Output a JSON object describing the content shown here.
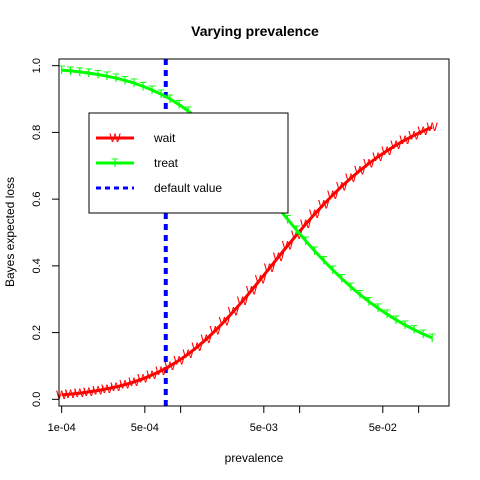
{
  "chart_data": {
    "type": "line",
    "title": "Varying prevalence",
    "xlabel": "prevalence",
    "ylabel": "Bayes expected loss",
    "x_scale": "log",
    "xlim": [
      9.5e-05,
      0.18
    ],
    "ylim": [
      -0.02,
      1.02
    ],
    "x_ticks": [
      {
        "value": 0.0001,
        "label": "1e-04"
      },
      {
        "value": 0.0005,
        "label": "5e-04"
      },
      {
        "value": 0.001,
        "label": ""
      },
      {
        "value": 0.005,
        "label": "5e-03"
      },
      {
        "value": 0.01,
        "label": ""
      },
      {
        "value": 0.05,
        "label": "5e-02"
      },
      {
        "value": 0.1,
        "label": ""
      }
    ],
    "y_ticks": [
      {
        "value": 0.0,
        "label": "0.0"
      },
      {
        "value": 0.2,
        "label": "0.2"
      },
      {
        "value": 0.4,
        "label": "0.4"
      },
      {
        "value": 0.6,
        "label": "0.6"
      },
      {
        "value": 0.8,
        "label": "0.8"
      },
      {
        "value": 1.0,
        "label": "1.0"
      }
    ],
    "grid": false,
    "legend_position": "top-left",
    "series": [
      {
        "name": "wait",
        "color": "#ff0000",
        "marker": "W",
        "x": [
          0.0001,
          0.000119,
          0.000142,
          0.000169,
          0.000202,
          0.00024,
          0.000286,
          0.000341,
          0.000406,
          0.000483,
          0.000575,
          0.000685,
          0.000816,
          0.000972,
          0.001158,
          0.001379,
          0.001643,
          0.001957,
          0.002331,
          0.002776,
          0.003307,
          0.003939,
          0.004691,
          0.005588,
          0.006655,
          0.007927,
          0.009441,
          0.011245,
          0.013393,
          0.015952,
          0.019,
          0.02263,
          0.026953,
          0.032102,
          0.038235,
          0.04554,
          0.054241,
          0.064603,
          0.076945,
          0.091645,
          0.109153,
          0.13
        ],
        "y": [
          0.0133,
          0.0158,
          0.0188,
          0.0223,
          0.0265,
          0.0315,
          0.0373,
          0.0442,
          0.0523,
          0.0618,
          0.0728,
          0.0855,
          0.1002,
          0.1169,
          0.1358,
          0.1569,
          0.1803,
          0.2059,
          0.2335,
          0.2631,
          0.2942,
          0.3266,
          0.3598,
          0.3934,
          0.4271,
          0.4604,
          0.4931,
          0.5248,
          0.5554,
          0.5846,
          0.6123,
          0.6385,
          0.663,
          0.6859,
          0.7071,
          0.7268,
          0.745,
          0.7617,
          0.7771,
          0.7912,
          0.8041,
          0.816
        ]
      },
      {
        "name": "treat",
        "color": "#00ff00",
        "marker": "T",
        "x": [
          0.0001,
          0.000119,
          0.000142,
          0.000169,
          0.000202,
          0.00024,
          0.000286,
          0.000341,
          0.000406,
          0.000483,
          0.000575,
          0.000685,
          0.000816,
          0.000972,
          0.001158,
          0.001379,
          0.001643,
          0.001957,
          0.002331,
          0.002776,
          0.003307,
          0.003939,
          0.004691,
          0.005588,
          0.006655,
          0.007927,
          0.009441,
          0.011245,
          0.013393,
          0.015952,
          0.019,
          0.02263,
          0.026953,
          0.032102,
          0.038235,
          0.04554,
          0.054241,
          0.064603,
          0.076945,
          0.091645,
          0.109153,
          0.13
        ],
        "y": [
          0.9867,
          0.9842,
          0.9812,
          0.9777,
          0.9735,
          0.9685,
          0.9627,
          0.9558,
          0.9477,
          0.9382,
          0.9272,
          0.9145,
          0.8998,
          0.8831,
          0.8642,
          0.8431,
          0.8197,
          0.7941,
          0.7665,
          0.7369,
          0.7058,
          0.6734,
          0.6402,
          0.6066,
          0.5729,
          0.5396,
          0.5069,
          0.4752,
          0.4446,
          0.4154,
          0.3877,
          0.3615,
          0.337,
          0.3141,
          0.2929,
          0.2732,
          0.255,
          0.2383,
          0.2229,
          0.2088,
          0.1959,
          0.184
        ]
      }
    ],
    "reference_line": {
      "name": "default value",
      "x": 0.00075,
      "color": "#0000ff",
      "style": "dashed"
    }
  }
}
